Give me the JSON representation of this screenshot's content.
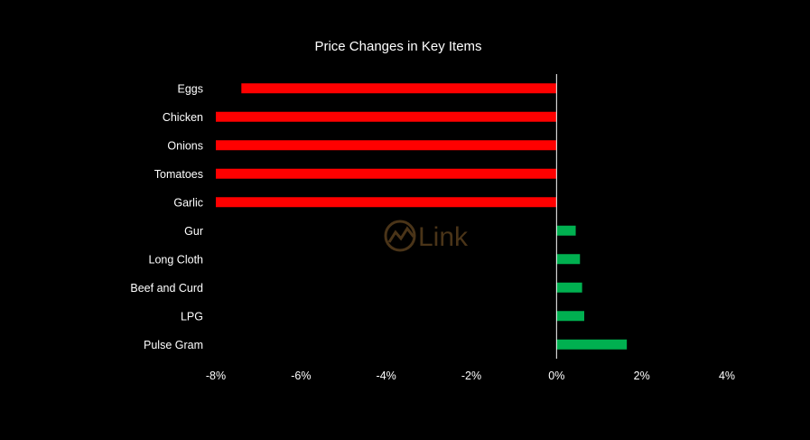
{
  "chart_data": {
    "type": "bar",
    "orientation": "horizontal",
    "title": "Price Changes in Key Items",
    "categories": [
      "Eggs",
      "Chicken",
      "Onions",
      "Tomatoes",
      "Garlic",
      "Gur",
      "Long Cloth",
      "Beef and Curd",
      "LPG",
      "Pulse Gram"
    ],
    "values": [
      -7.4,
      -8.0,
      -8.0,
      -8.0,
      -8.0,
      0.45,
      0.55,
      0.6,
      0.65,
      1.65
    ],
    "xlim": [
      -8,
      4
    ],
    "xticks": [
      -8,
      -6,
      -4,
      -2,
      0,
      2,
      4
    ],
    "xtick_labels": [
      "-8%",
      "-6%",
      "-4%",
      "-2%",
      "0%",
      "2%",
      "4%"
    ],
    "xlabel": "",
    "ylabel": "",
    "grid": false,
    "colors": {
      "negative": "#ff0000",
      "positive": "#00b050",
      "axis": "#ffffff",
      "background": "#000000"
    }
  },
  "watermark": {
    "text": "Link",
    "icon": "chart-circle-logo-icon",
    "color": "#4a3418"
  }
}
